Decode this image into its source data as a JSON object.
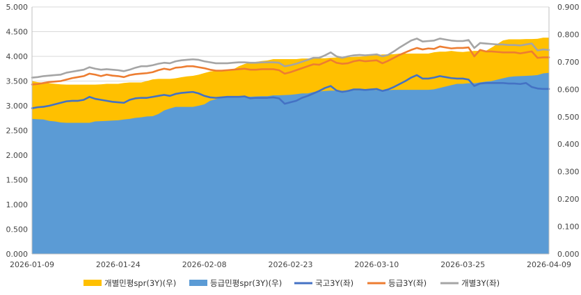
{
  "chart_data": {
    "type": "area",
    "x": [
      "2026-01-09",
      "2026-01-10",
      "2026-01-11",
      "2026-01-12",
      "2026-01-13",
      "2026-01-14",
      "2026-01-15",
      "2026-01-16",
      "2026-01-17",
      "2026-01-18",
      "2026-01-19",
      "2026-01-20",
      "2026-01-21",
      "2026-01-22",
      "2026-01-23",
      "2026-01-24",
      "2026-01-25",
      "2026-01-26",
      "2026-01-27",
      "2026-01-28",
      "2026-01-29",
      "2026-01-30",
      "2026-01-31",
      "2026-02-01",
      "2026-02-02",
      "2026-02-03",
      "2026-02-04",
      "2026-02-05",
      "2026-02-06",
      "2026-02-07",
      "2026-02-08",
      "2026-02-09",
      "2026-02-10",
      "2026-02-11",
      "2026-02-12",
      "2026-02-13",
      "2026-02-14",
      "2026-02-15",
      "2026-02-16",
      "2026-02-17",
      "2026-02-18",
      "2026-02-19",
      "2026-02-20",
      "2026-02-21",
      "2026-02-22",
      "2026-02-23",
      "2026-02-24",
      "2026-02-25",
      "2026-02-26",
      "2026-02-27",
      "2026-02-28",
      "2026-03-01",
      "2026-03-02",
      "2026-03-03",
      "2026-03-04",
      "2026-03-05",
      "2026-03-06",
      "2026-03-07",
      "2026-03-08",
      "2026-03-09",
      "2026-03-10",
      "2026-03-11",
      "2026-03-12",
      "2026-03-13",
      "2026-03-14",
      "2026-03-15",
      "2026-03-16",
      "2026-03-17",
      "2026-03-18",
      "2026-03-19",
      "2026-03-20",
      "2026-03-21",
      "2026-03-22",
      "2026-03-23",
      "2026-03-24",
      "2026-03-25",
      "2026-03-26",
      "2026-03-27",
      "2026-03-28",
      "2026-03-29",
      "2026-03-30",
      "2026-03-31",
      "2026-04-01",
      "2026-04-02",
      "2026-04-03",
      "2026-04-04",
      "2026-04-05",
      "2026-04-06",
      "2026-04-07",
      "2026-04-08",
      "2026-04-09"
    ],
    "x_ticks": [
      "2026-01-09",
      "2026-01-24",
      "2026-02-08",
      "2026-02-23",
      "2026-03-10",
      "2026-03-25",
      "2026-04-09"
    ],
    "y_left": {
      "min": 0,
      "max": 5,
      "ticks": [
        "0.000",
        "0.500",
        "1.000",
        "1.500",
        "2.000",
        "2.500",
        "3.000",
        "3.500",
        "4.000",
        "4.500",
        "5.000"
      ]
    },
    "y_right": {
      "min": 0,
      "max": 0.9,
      "ticks": [
        "0.000",
        "0.100",
        "0.200",
        "0.300",
        "0.400",
        "0.500",
        "0.600",
        "0.700",
        "0.800",
        "0.900"
      ]
    },
    "grid": true,
    "legend_position": "bottom",
    "series": [
      {
        "name": "개별민평spr(3Y)(우)",
        "type": "area",
        "axis": "right",
        "color": "#FFC000",
        "values": [
          0.63,
          0.626,
          0.624,
          0.622,
          0.62,
          0.618,
          0.617,
          0.617,
          0.617,
          0.617,
          0.617,
          0.617,
          0.618,
          0.62,
          0.62,
          0.62,
          0.623,
          0.625,
          0.625,
          0.625,
          0.63,
          0.636,
          0.638,
          0.638,
          0.638,
          0.64,
          0.644,
          0.647,
          0.649,
          0.653,
          0.659,
          0.665,
          0.667,
          0.668,
          0.668,
          0.672,
          0.684,
          0.692,
          0.698,
          0.7,
          0.703,
          0.705,
          0.71,
          0.71,
          0.71,
          0.71,
          0.71,
          0.712,
          0.712,
          0.712,
          0.713,
          0.713,
          0.715,
          0.716,
          0.717,
          0.717,
          0.718,
          0.719,
          0.72,
          0.723,
          0.724,
          0.727,
          0.727,
          0.728,
          0.73,
          0.73,
          0.73,
          0.73,
          0.73,
          0.73,
          0.735,
          0.737,
          0.737,
          0.74,
          0.737,
          0.736,
          0.738,
          0.74,
          0.74,
          0.74,
          0.752,
          0.765,
          0.778,
          0.782,
          0.782,
          0.782,
          0.783,
          0.783,
          0.784,
          0.788,
          0.788
        ]
      },
      {
        "name": "등급민평spr(3Y)(우)",
        "type": "area",
        "axis": "right",
        "color": "#5B9BD5",
        "values": [
          0.492,
          0.491,
          0.49,
          0.485,
          0.483,
          0.479,
          0.478,
          0.478,
          0.478,
          0.478,
          0.478,
          0.483,
          0.484,
          0.485,
          0.486,
          0.487,
          0.49,
          0.492,
          0.496,
          0.498,
          0.501,
          0.502,
          0.51,
          0.523,
          0.53,
          0.536,
          0.536,
          0.536,
          0.536,
          0.54,
          0.545,
          0.558,
          0.564,
          0.57,
          0.571,
          0.572,
          0.572,
          0.572,
          0.573,
          0.574,
          0.575,
          0.575,
          0.578,
          0.578,
          0.579,
          0.58,
          0.582,
          0.585,
          0.585,
          0.59,
          0.592,
          0.594,
          0.595,
          0.595,
          0.595,
          0.595,
          0.596,
          0.596,
          0.596,
          0.597,
          0.597,
          0.597,
          0.597,
          0.598,
          0.598,
          0.598,
          0.598,
          0.598,
          0.598,
          0.598,
          0.6,
          0.605,
          0.61,
          0.615,
          0.62,
          0.62,
          0.622,
          0.622,
          0.625,
          0.628,
          0.63,
          0.635,
          0.64,
          0.645,
          0.647,
          0.648,
          0.649,
          0.65,
          0.652,
          0.658,
          0.66
        ]
      },
      {
        "name": "국고3Y(좌)",
        "type": "line",
        "axis": "left",
        "color": "#4472C4",
        "values": [
          2.95,
          2.97,
          2.98,
          3.0,
          3.03,
          3.06,
          3.09,
          3.1,
          3.1,
          3.12,
          3.18,
          3.14,
          3.12,
          3.1,
          3.08,
          3.07,
          3.06,
          3.12,
          3.15,
          3.16,
          3.16,
          3.18,
          3.2,
          3.22,
          3.2,
          3.24,
          3.26,
          3.27,
          3.28,
          3.25,
          3.2,
          3.17,
          3.16,
          3.17,
          3.18,
          3.18,
          3.18,
          3.19,
          3.15,
          3.16,
          3.16,
          3.16,
          3.17,
          3.15,
          3.04,
          3.07,
          3.1,
          3.16,
          3.2,
          3.25,
          3.3,
          3.36,
          3.4,
          3.31,
          3.28,
          3.3,
          3.33,
          3.33,
          3.32,
          3.33,
          3.34,
          3.3,
          3.33,
          3.38,
          3.44,
          3.5,
          3.57,
          3.62,
          3.55,
          3.55,
          3.57,
          3.6,
          3.58,
          3.56,
          3.55,
          3.55,
          3.53,
          3.4,
          3.45,
          3.46,
          3.46,
          3.46,
          3.46,
          3.45,
          3.45,
          3.44,
          3.46,
          3.38,
          3.35,
          3.34,
          3.34
        ]
      },
      {
        "name": "등급3Y(좌)",
        "type": "line",
        "axis": "left",
        "color": "#ED7D31",
        "values": [
          3.43,
          3.44,
          3.46,
          3.48,
          3.49,
          3.5,
          3.53,
          3.56,
          3.58,
          3.6,
          3.65,
          3.63,
          3.6,
          3.63,
          3.61,
          3.6,
          3.58,
          3.62,
          3.64,
          3.65,
          3.66,
          3.68,
          3.72,
          3.75,
          3.73,
          3.77,
          3.78,
          3.8,
          3.8,
          3.78,
          3.76,
          3.73,
          3.71,
          3.71,
          3.72,
          3.73,
          3.74,
          3.75,
          3.73,
          3.73,
          3.74,
          3.74,
          3.74,
          3.72,
          3.65,
          3.68,
          3.72,
          3.76,
          3.8,
          3.84,
          3.83,
          3.88,
          3.93,
          3.87,
          3.85,
          3.86,
          3.9,
          3.92,
          3.9,
          3.91,
          3.92,
          3.86,
          3.91,
          3.97,
          4.03,
          4.08,
          4.13,
          4.17,
          4.14,
          4.16,
          4.15,
          4.2,
          4.18,
          4.16,
          4.17,
          4.17,
          4.18,
          4.0,
          4.13,
          4.1,
          4.1,
          4.09,
          4.08,
          4.08,
          4.08,
          4.06,
          4.08,
          4.1,
          3.97,
          3.98,
          3.98
        ]
      },
      {
        "name": "개별3Y(좌)",
        "type": "line",
        "axis": "left",
        "color": "#A5A5A5",
        "values": [
          3.57,
          3.58,
          3.6,
          3.61,
          3.62,
          3.63,
          3.67,
          3.69,
          3.71,
          3.73,
          3.78,
          3.75,
          3.73,
          3.74,
          3.73,
          3.72,
          3.7,
          3.73,
          3.77,
          3.8,
          3.8,
          3.82,
          3.85,
          3.87,
          3.86,
          3.9,
          3.92,
          3.93,
          3.94,
          3.93,
          3.9,
          3.88,
          3.86,
          3.86,
          3.86,
          3.87,
          3.88,
          3.88,
          3.87,
          3.87,
          3.88,
          3.88,
          3.88,
          3.87,
          3.8,
          3.82,
          3.85,
          3.89,
          3.93,
          3.97,
          3.97,
          4.02,
          4.08,
          4.0,
          3.97,
          4.0,
          4.02,
          4.03,
          4.02,
          4.03,
          4.04,
          4.0,
          4.03,
          4.1,
          4.18,
          4.25,
          4.32,
          4.36,
          4.3,
          4.31,
          4.32,
          4.36,
          4.34,
          4.32,
          4.31,
          4.31,
          4.33,
          4.17,
          4.27,
          4.26,
          4.25,
          4.24,
          4.24,
          4.23,
          4.23,
          4.22,
          4.24,
          4.26,
          4.12,
          4.14,
          4.13
        ]
      }
    ]
  }
}
